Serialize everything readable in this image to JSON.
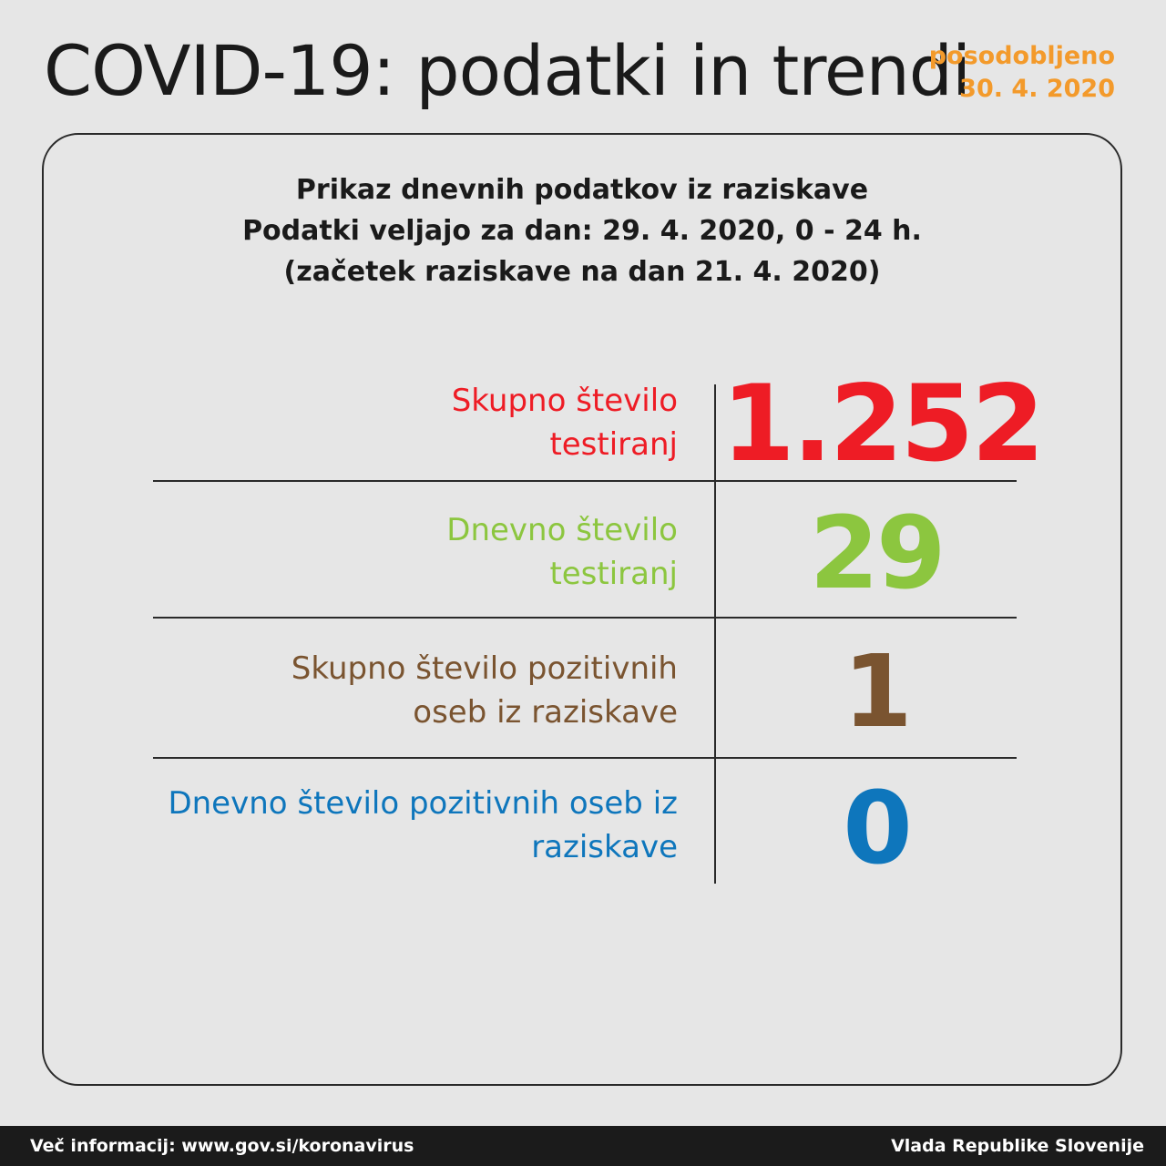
{
  "header": {
    "title": "COVID-19: podatki in trendi",
    "updated_label": "posodobljeno",
    "updated_date": "30. 4. 2020"
  },
  "panel": {
    "subtitle_lines": [
      "Prikaz dnevnih podatkov iz raziskave",
      "Podatki veljajo za dan: 29. 4. 2020, 0 - 24 h.",
      "(začetek raziskave na dan 21. 4. 2020)"
    ],
    "stats": [
      {
        "label_lines": [
          "Skupno število",
          "testiranj"
        ],
        "value": "1.252",
        "color": "#ee1c25"
      },
      {
        "label_lines": [
          "Dnevno število",
          "testiranj"
        ],
        "value": "29",
        "color": "#8cc63f"
      },
      {
        "label_lines": [
          "Skupno število pozitivnih",
          "oseb iz raziskave"
        ],
        "value": "1",
        "color": "#7a5430"
      },
      {
        "label_lines": [
          "Dnevno število pozitivnih oseb iz",
          "raziskave"
        ],
        "value": "0",
        "color": "#0e76bc"
      }
    ]
  },
  "footer": {
    "info": "Več informacij: www.gov.si/koronavirus",
    "org": "Vlada Republike Slovenije"
  }
}
